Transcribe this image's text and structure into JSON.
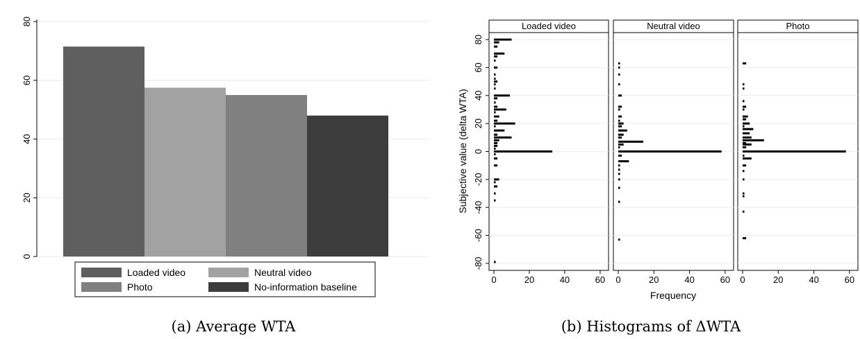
{
  "chart_data": [
    {
      "type": "bar",
      "caption": "(a) Average WTA",
      "categories": [
        "Loaded video",
        "Neutral video",
        "Photo",
        "No-information baseline"
      ],
      "values": [
        71.5,
        57.5,
        55,
        48
      ],
      "colors": [
        "#5f5f5f",
        "#a2a2a2",
        "#808080",
        "#3c3c3c"
      ],
      "ylim": [
        0,
        85
      ],
      "yticks": [
        "0",
        "20",
        "40",
        "60",
        "80"
      ],
      "grid": true,
      "legend": {
        "placement": "bottom",
        "items": [
          {
            "label": "Loaded video",
            "color": "#5f5f5f"
          },
          {
            "label": "Neutral video",
            "color": "#a2a2a2"
          },
          {
            "label": "Photo",
            "color": "#808080"
          },
          {
            "label": "No-information baseline",
            "color": "#3c3c3c"
          }
        ]
      }
    },
    {
      "type": "bar",
      "orientation": "horizontal",
      "caption": "(b) Histograms of ΔWTA",
      "ylabel": "Subjective value (delta WTA)",
      "xlabel": "Frequency",
      "ylim": [
        -85,
        85
      ],
      "xlim": [
        0,
        62
      ],
      "yticks": [
        "80",
        "60",
        "40",
        "20",
        "0",
        "-20",
        "-40",
        "-60",
        "-80"
      ],
      "xticks": [
        "0",
        "20",
        "40",
        "60"
      ],
      "panels": [
        {
          "title": "Loaded video",
          "bins": [
            [
              80,
              10
            ],
            [
              78,
              3
            ],
            [
              75,
              2
            ],
            [
              70,
              6
            ],
            [
              68,
              2
            ],
            [
              65,
              1
            ],
            [
              60,
              2
            ],
            [
              55,
              1
            ],
            [
              52,
              1
            ],
            [
              50,
              2
            ],
            [
              48,
              1
            ],
            [
              45,
              1
            ],
            [
              40,
              9
            ],
            [
              38,
              2
            ],
            [
              35,
              1
            ],
            [
              32,
              2
            ],
            [
              30,
              7
            ],
            [
              28,
              1
            ],
            [
              25,
              3
            ],
            [
              22,
              2
            ],
            [
              20,
              12
            ],
            [
              18,
              1
            ],
            [
              15,
              6
            ],
            [
              12,
              2
            ],
            [
              10,
              10
            ],
            [
              8,
              3
            ],
            [
              6,
              2
            ],
            [
              4,
              2
            ],
            [
              2,
              1
            ],
            [
              0,
              33
            ],
            [
              -2,
              1
            ],
            [
              -5,
              2
            ],
            [
              -10,
              2
            ],
            [
              -20,
              3
            ],
            [
              -22,
              1
            ],
            [
              -25,
              2
            ],
            [
              -30,
              1
            ],
            [
              -35,
              1
            ],
            [
              -79,
              1
            ]
          ]
        },
        {
          "title": "Neutral video",
          "bins": [
            [
              63,
              1
            ],
            [
              60,
              1
            ],
            [
              55,
              1
            ],
            [
              48,
              1
            ],
            [
              40,
              2
            ],
            [
              32,
              2
            ],
            [
              30,
              1
            ],
            [
              25,
              2
            ],
            [
              22,
              1
            ],
            [
              20,
              3
            ],
            [
              18,
              2
            ],
            [
              15,
              5
            ],
            [
              12,
              3
            ],
            [
              10,
              2
            ],
            [
              7,
              14
            ],
            [
              5,
              3
            ],
            [
              3,
              1
            ],
            [
              0,
              58
            ],
            [
              -3,
              2
            ],
            [
              -7,
              6
            ],
            [
              -10,
              1
            ],
            [
              -13,
              1
            ],
            [
              -16,
              1
            ],
            [
              -20,
              1
            ],
            [
              -26,
              1
            ],
            [
              -36,
              1
            ],
            [
              -63,
              1
            ]
          ]
        },
        {
          "title": "Photo",
          "bins": [
            [
              63,
              2
            ],
            [
              48,
              1
            ],
            [
              45,
              1
            ],
            [
              36,
              1
            ],
            [
              32,
              2
            ],
            [
              30,
              1
            ],
            [
              25,
              3
            ],
            [
              23,
              2
            ],
            [
              20,
              4
            ],
            [
              18,
              1
            ],
            [
              16,
              6
            ],
            [
              13,
              4
            ],
            [
              10,
              5
            ],
            [
              8,
              12
            ],
            [
              6,
              2
            ],
            [
              5,
              5
            ],
            [
              3,
              2
            ],
            [
              0,
              58
            ],
            [
              -3,
              1
            ],
            [
              -5,
              5
            ],
            [
              -10,
              2
            ],
            [
              -14,
              1
            ],
            [
              -20,
              1
            ],
            [
              -30,
              1
            ],
            [
              -32,
              1
            ],
            [
              -43,
              1
            ],
            [
              -62,
              2
            ]
          ]
        }
      ]
    }
  ]
}
